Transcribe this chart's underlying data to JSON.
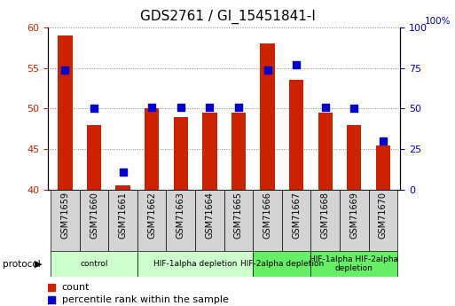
{
  "title": "GDS2761 / GI_15451841-I",
  "samples": [
    "GSM71659",
    "GSM71660",
    "GSM71661",
    "GSM71662",
    "GSM71663",
    "GSM71664",
    "GSM71665",
    "GSM71666",
    "GSM71667",
    "GSM71668",
    "GSM71669",
    "GSM71670"
  ],
  "counts": [
    59.0,
    48.0,
    40.5,
    50.0,
    49.0,
    49.5,
    49.5,
    58.0,
    53.5,
    49.5,
    48.0,
    45.5
  ],
  "percentile_ranks": [
    74,
    50,
    11,
    51,
    51,
    51,
    51,
    74,
    77,
    51,
    50,
    30
  ],
  "ylim_left": [
    40,
    60
  ],
  "ylim_right": [
    0,
    100
  ],
  "yticks_left": [
    40,
    45,
    50,
    55,
    60
  ],
  "yticks_right": [
    0,
    25,
    50,
    75,
    100
  ],
  "bar_color": "#cc2200",
  "dot_color": "#0000cc",
  "bar_width": 0.5,
  "dot_size": 35,
  "groups": [
    {
      "label": "control",
      "start": 0,
      "end": 2,
      "color": "#ccffcc"
    },
    {
      "label": "HIF-1alpha depletion",
      "start": 3,
      "end": 6,
      "color": "#ccffcc"
    },
    {
      "label": "HIF-2alpha depletion",
      "start": 7,
      "end": 8,
      "color": "#66ee66"
    },
    {
      "label": "HIF-1alpha HIF-2alpha\ndepletion",
      "start": 9,
      "end": 11,
      "color": "#66ee66"
    }
  ],
  "legend_count_label": "count",
  "legend_pct_label": "percentile rank within the sample",
  "protocol_label": "protocol",
  "title_fontsize": 11,
  "tick_color_left": "#cc2200",
  "tick_color_right": "#0000cc",
  "grid_color": "#888888",
  "xtick_bg_color": "#d4d4d4",
  "pct_label": "100%"
}
